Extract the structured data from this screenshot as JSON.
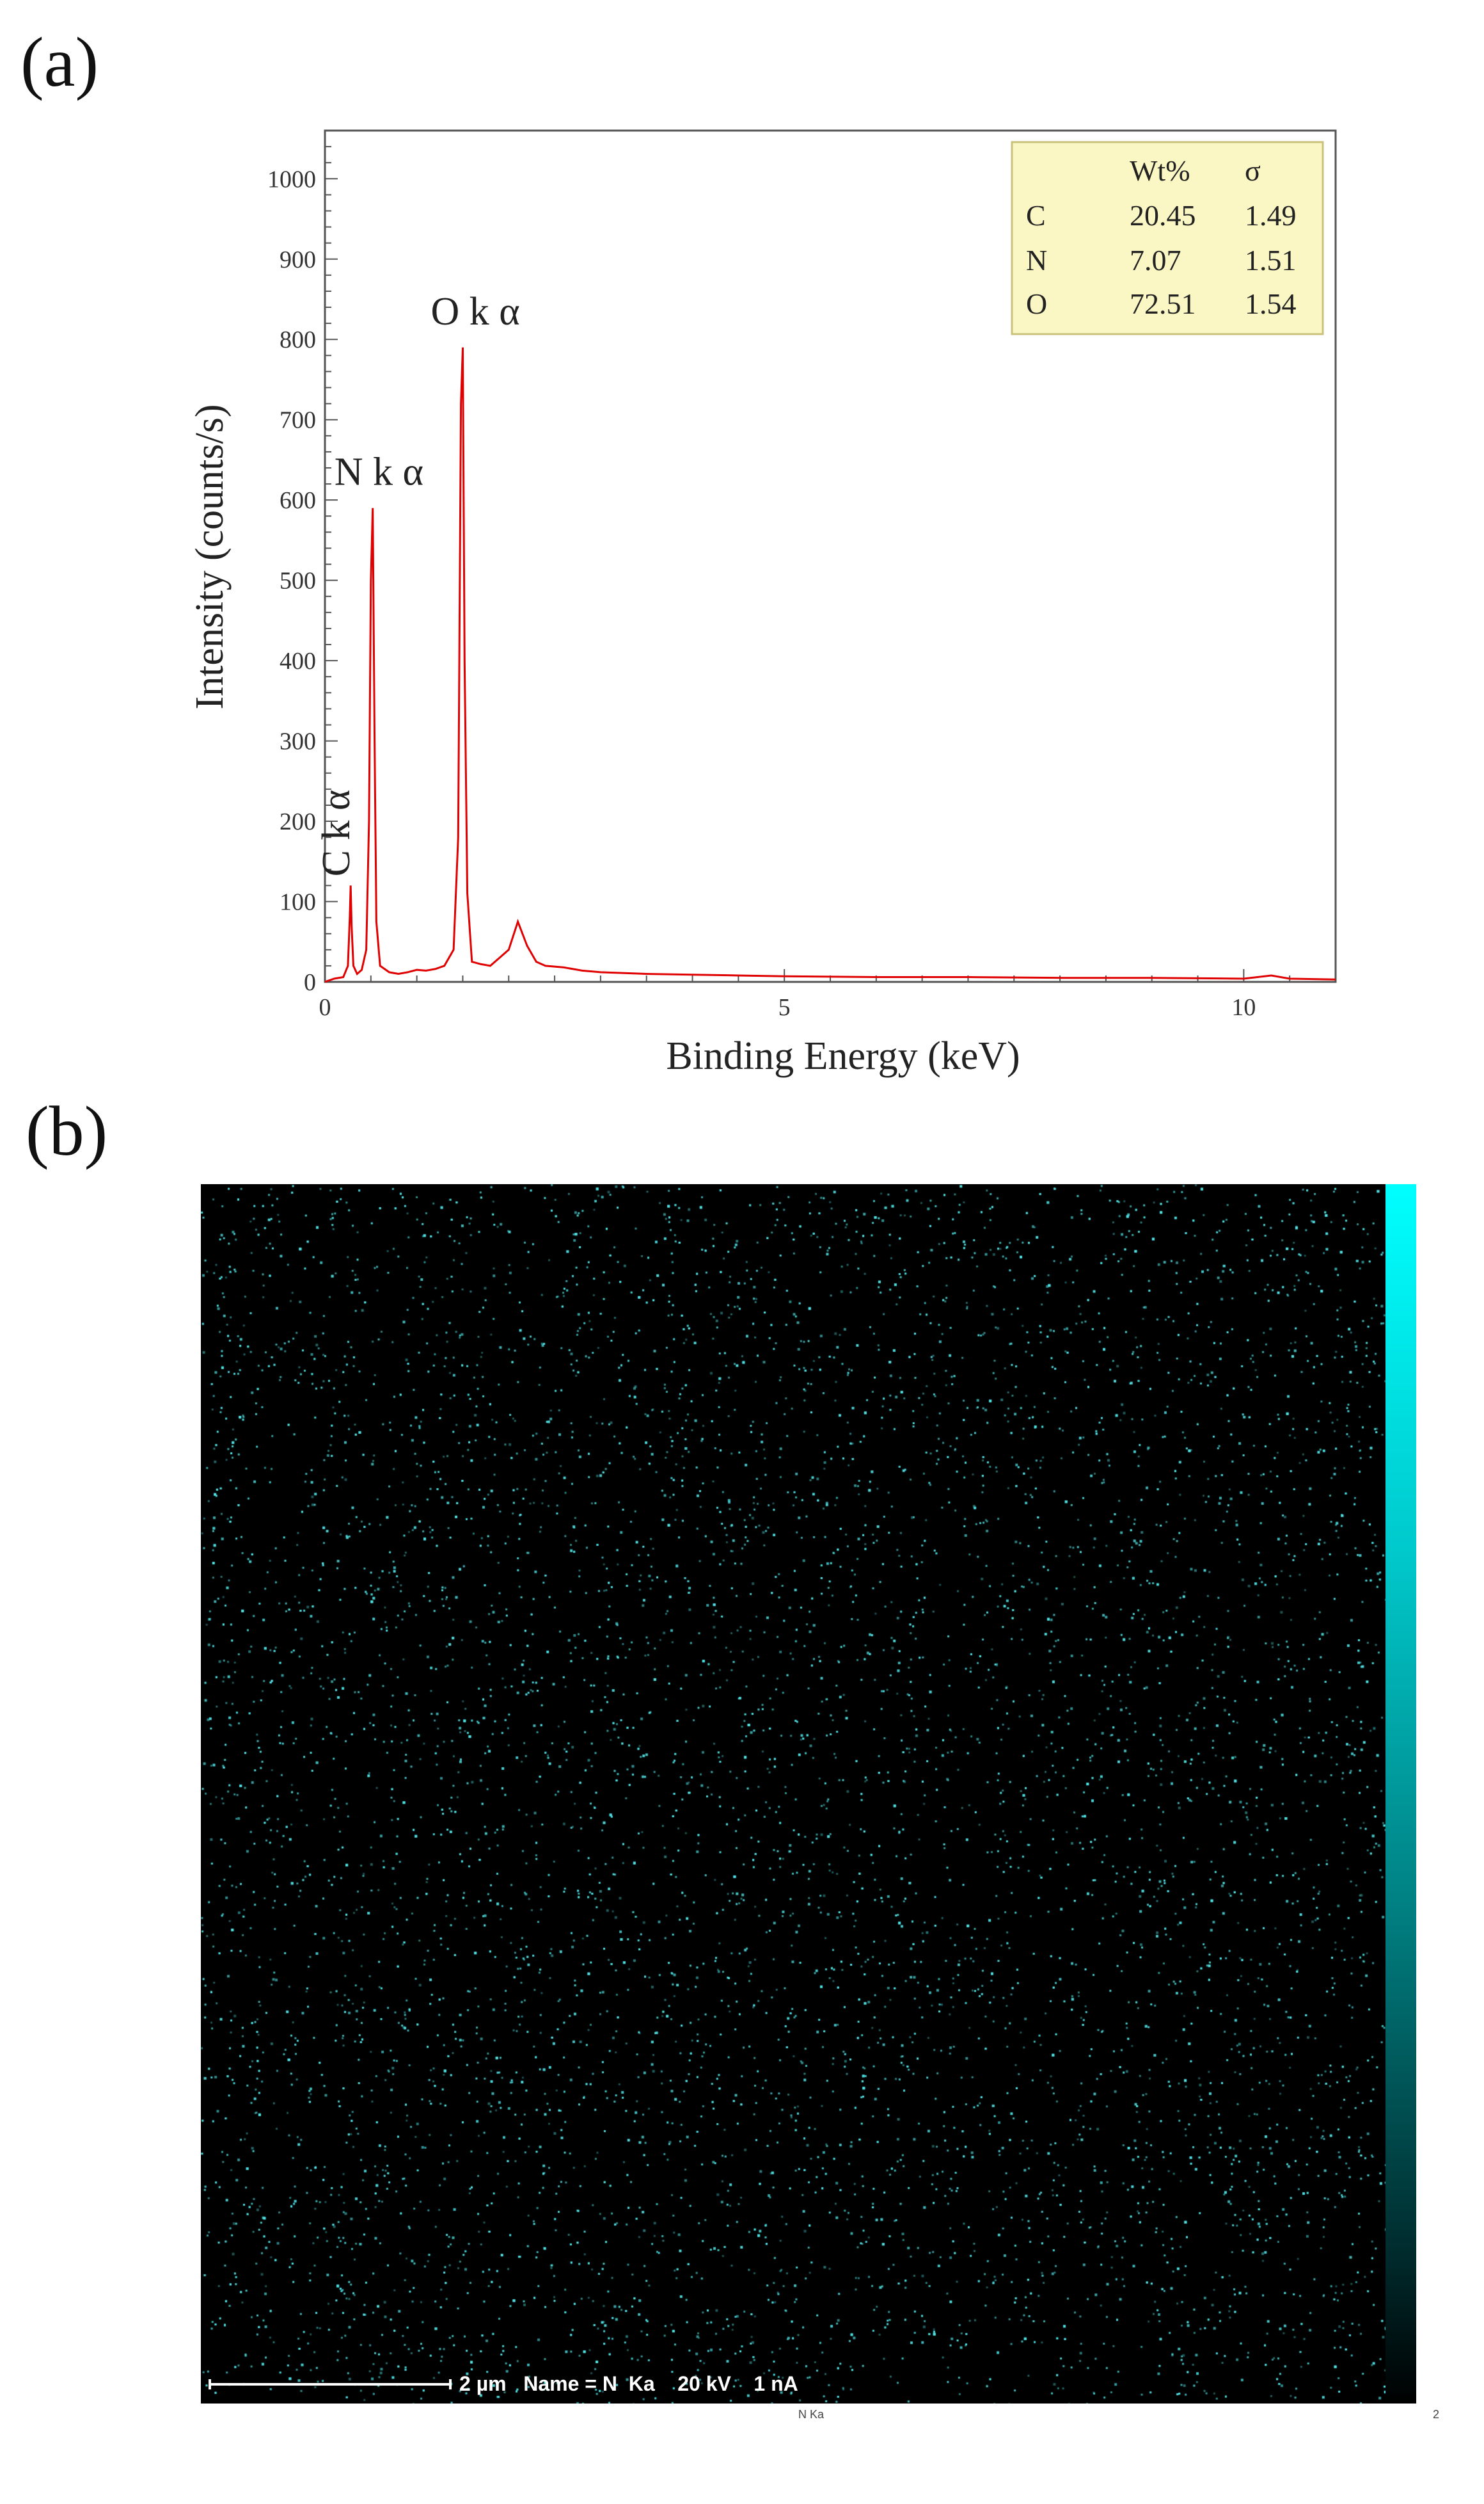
{
  "panels": {
    "a_label": "(a)",
    "b_label": "(b)"
  },
  "chart_data": {
    "type": "line",
    "xlabel": "Binding Energy (keV)",
    "ylabel": "Intensity (counts/s)",
    "xlim": [
      0,
      11
    ],
    "ylim": [
      0,
      1060
    ],
    "x_ticks": [
      0,
      5,
      10
    ],
    "y_ticks": [
      0,
      100,
      200,
      300,
      400,
      500,
      600,
      700,
      800,
      900,
      1000
    ],
    "color": "#e00000",
    "peaks": [
      {
        "label": "C k α",
        "x": 0.28,
        "y": 120
      },
      {
        "label": "N k α",
        "x": 0.52,
        "y": 590
      },
      {
        "label": "O k α",
        "x": 1.5,
        "y": 790
      }
    ],
    "series": [
      {
        "values_x": [
          0.0,
          0.1,
          0.2,
          0.25,
          0.27,
          0.28,
          0.29,
          0.31,
          0.35,
          0.4,
          0.45,
          0.48,
          0.5,
          0.52,
          0.54,
          0.56,
          0.6,
          0.7,
          0.8,
          0.9,
          1.0,
          1.1,
          1.2,
          1.3,
          1.4,
          1.45,
          1.48,
          1.5,
          1.52,
          1.55,
          1.6,
          1.7,
          1.8,
          1.9,
          2.0,
          2.1,
          2.15,
          2.2,
          2.3,
          2.4,
          2.6,
          2.8,
          3.0,
          3.5,
          4.0,
          4.5,
          5.0,
          6.0,
          7.0,
          8.0,
          9.0,
          10.0,
          10.3,
          10.5,
          11.0
        ],
        "values_y": [
          0,
          4,
          6,
          20,
          80,
          120,
          70,
          20,
          10,
          15,
          40,
          200,
          500,
          590,
          300,
          75,
          20,
          12,
          10,
          12,
          15,
          14,
          16,
          20,
          40,
          180,
          720,
          790,
          400,
          110,
          25,
          22,
          20,
          30,
          40,
          75,
          60,
          45,
          25,
          20,
          18,
          14,
          12,
          10,
          9,
          8,
          7,
          6,
          6,
          5,
          5,
          4,
          8,
          4,
          3
        ]
      }
    ],
    "table": {
      "headers": [
        "",
        "Wt%",
        "σ"
      ],
      "rows": [
        [
          "C",
          "20.45",
          "1.49"
        ],
        [
          "N",
          "7.07",
          "1.51"
        ],
        [
          "O",
          "72.51",
          "1.54"
        ]
      ]
    }
  },
  "map": {
    "info": "2 µm   Name = N  Ka    20 kV    1 nA",
    "sub_label": "N Ka",
    "corner_label": "2",
    "dot_color": "#4fe3e6"
  }
}
